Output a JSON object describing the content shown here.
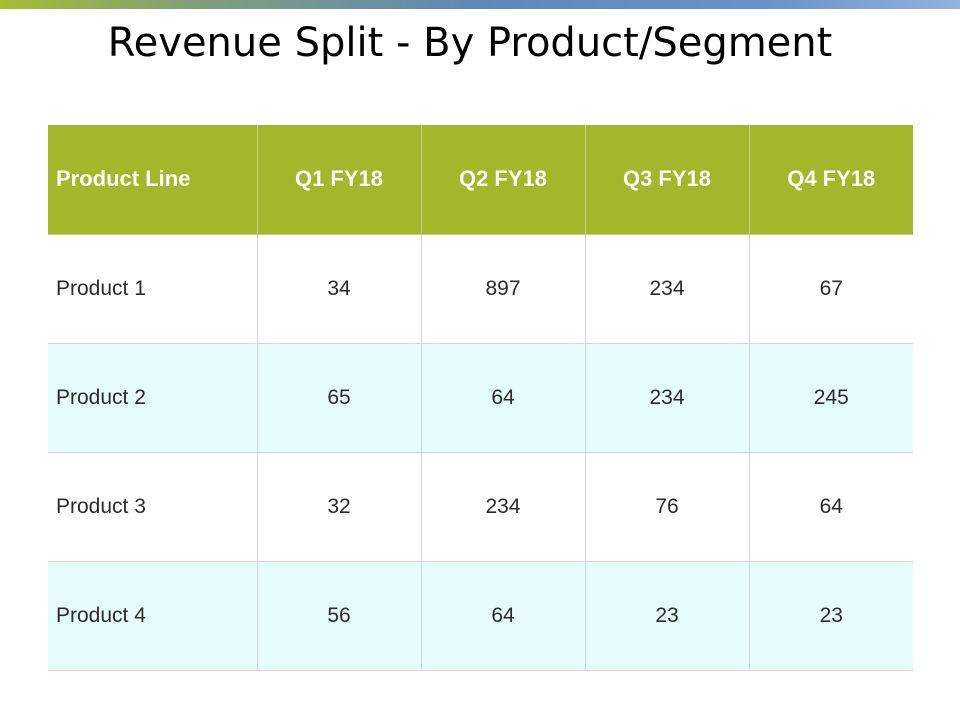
{
  "slide": {
    "title": "Revenue Split - By Product/Segment",
    "header_color": "#a3b72a",
    "alt_row_color": "#e6fcfb"
  },
  "table": {
    "headers": [
      "Product Line",
      "Q1 FY18",
      "Q2 FY18",
      "Q3 FY18",
      "Q4 FY18"
    ],
    "rows": [
      [
        "Product 1",
        "34",
        "897",
        "234",
        "67"
      ],
      [
        "Product 2",
        "65",
        "64",
        "234",
        "245"
      ],
      [
        "Product 3",
        "32",
        "234",
        "76",
        "64"
      ],
      [
        "Product 4",
        "56",
        "64",
        "23",
        "23"
      ]
    ]
  }
}
